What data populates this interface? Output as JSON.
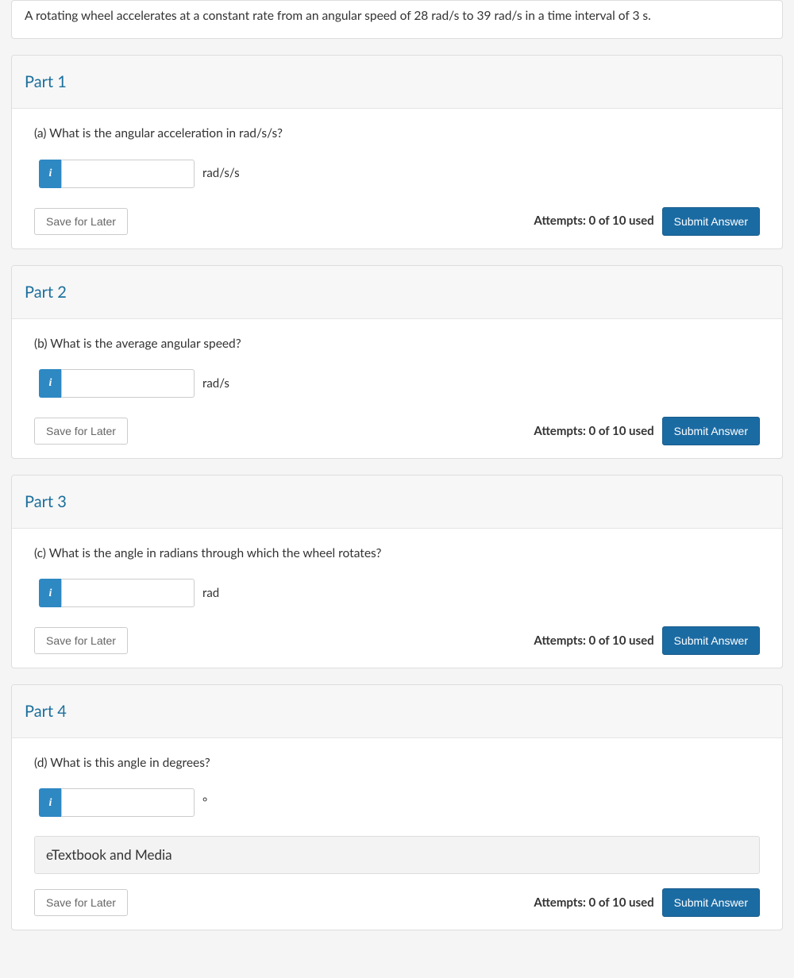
{
  "colors": {
    "page_bg": "#f5f5f5",
    "card_bg": "#ffffff",
    "card_border": "#dddddd",
    "header_bg": "#f7f7f7",
    "part_title": "#1b6f9c",
    "info_addon": "#2e88c2",
    "submit_bg": "#1b6ba3",
    "text": "#333333",
    "muted_text": "#666666"
  },
  "problem": {
    "statement": "A rotating wheel accelerates at a constant rate from an angular speed of 28 rad/s to 39 rad/s in a time interval of 3 s."
  },
  "buttons": {
    "save": "Save for Later",
    "submit": "Submit Answer"
  },
  "info_icon_glyph": "i",
  "etextbook_label": "eTextbook and Media",
  "parts": [
    {
      "title": "Part 1",
      "question": "(a) What is the angular acceleration in rad/s/s?",
      "unit": "rad/s/s",
      "value": "",
      "attempts": "Attempts: 0 of 10 used",
      "show_etextbook": false
    },
    {
      "title": "Part 2",
      "question": "(b) What is the average angular speed?",
      "unit": "rad/s",
      "value": "",
      "attempts": "Attempts: 0 of 10 used",
      "show_etextbook": false
    },
    {
      "title": "Part 3",
      "question": "(c) What is the angle in radians through which the wheel rotates?",
      "unit": "rad",
      "value": "",
      "attempts": "Attempts: 0 of 10 used",
      "show_etextbook": false
    },
    {
      "title": "Part 4",
      "question": "(d) What is this angle in degrees?",
      "unit": "°",
      "value": "",
      "attempts": "Attempts: 0 of 10 used",
      "show_etextbook": true
    }
  ]
}
